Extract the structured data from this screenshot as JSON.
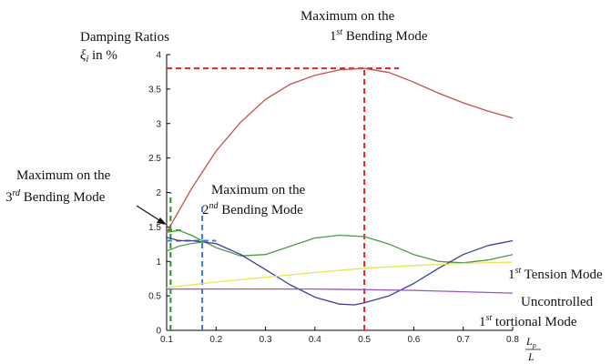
{
  "chart_data": {
    "type": "line",
    "ylabel_line1": "Damping Ratios",
    "ylabel_var": "ξ",
    "ylabel_sub": "i",
    "ylabel_rest": " in %",
    "xlabel_num": "L",
    "xlabel_num_sub": "p",
    "xlabel_den": "L",
    "xlim": [
      0.1,
      0.8
    ],
    "ylim": [
      0,
      4
    ],
    "xticks": [
      "0.1",
      "0.2",
      "0.3",
      "0.4",
      "0.5",
      "0.6",
      "0.7",
      "0.8"
    ],
    "yticks": [
      "0",
      "0.5",
      "1",
      "1.5",
      "2",
      "2.5",
      "3",
      "3.5",
      "4"
    ],
    "grid": false,
    "series": [
      {
        "color": "#c0504d",
        "x": [
          0.1,
          0.15,
          0.2,
          0.25,
          0.3,
          0.35,
          0.4,
          0.45,
          0.5,
          0.55,
          0.6,
          0.65,
          0.7,
          0.75,
          0.8
        ],
        "y": [
          1.42,
          2.05,
          2.6,
          3.02,
          3.35,
          3.57,
          3.7,
          3.78,
          3.8,
          3.74,
          3.6,
          3.44,
          3.3,
          3.18,
          3.08
        ]
      },
      {
        "color": "#4a9a4a",
        "x": [
          0.1,
          0.125,
          0.15,
          0.2,
          0.25,
          0.3,
          0.35,
          0.4,
          0.45,
          0.5,
          0.55,
          0.6,
          0.65,
          0.7,
          0.75,
          0.8
        ],
        "y": [
          1.42,
          1.45,
          1.38,
          1.2,
          1.08,
          1.1,
          1.22,
          1.34,
          1.38,
          1.36,
          1.25,
          1.1,
          1.0,
          0.98,
          1.02,
          1.1
        ]
      },
      {
        "color": "#3c3c9c",
        "x": [
          0.1,
          0.125,
          0.15,
          0.2,
          0.25,
          0.3,
          0.35,
          0.4,
          0.45,
          0.48,
          0.5,
          0.55,
          0.6,
          0.65,
          0.7,
          0.75,
          0.8
        ],
        "y": [
          1.35,
          1.3,
          1.3,
          1.26,
          1.1,
          0.88,
          0.66,
          0.48,
          0.38,
          0.37,
          0.4,
          0.5,
          0.68,
          0.9,
          1.1,
          1.23,
          1.3
        ]
      },
      {
        "color": "#5b9a5b",
        "x": [
          0.1,
          0.125,
          0.15,
          0.175
        ],
        "y": [
          1.15,
          1.22,
          1.26,
          1.28
        ]
      },
      {
        "color": "#e8e84a",
        "x": [
          0.1,
          0.2,
          0.3,
          0.4,
          0.5,
          0.6,
          0.7,
          0.8
        ],
        "y": [
          0.62,
          0.7,
          0.77,
          0.84,
          0.9,
          0.94,
          0.97,
          0.99
        ]
      },
      {
        "color": "#9a55c2",
        "x": [
          0.1,
          0.2,
          0.3,
          0.4,
          0.5,
          0.6,
          0.7,
          0.8
        ],
        "y": [
          0.6,
          0.6,
          0.6,
          0.6,
          0.59,
          0.58,
          0.56,
          0.54
        ]
      }
    ],
    "guides": [
      {
        "color": "#e02020",
        "orient": "v",
        "x": 0.5,
        "y0": 0,
        "y1": 3.82
      },
      {
        "color": "#e02020",
        "orient": "h",
        "y": 3.8,
        "x0": 0.1,
        "x1": 0.57
      },
      {
        "color": "#1e9a1e",
        "orient": "v",
        "x": 0.108,
        "y0": 0,
        "y1": 2.0
      },
      {
        "color": "#1e9a1e",
        "orient": "h",
        "y": 1.45,
        "x0": 0.1,
        "x1": 0.13
      },
      {
        "color": "#3a7ad8",
        "orient": "v",
        "x": 0.172,
        "y0": 0,
        "y1": 1.8
      },
      {
        "color": "#3a7ad8",
        "orient": "h",
        "y": 1.3,
        "x0": 0.1,
        "x1": 0.2
      }
    ],
    "annotations": {
      "max1_line1": "Maximum on the",
      "max1_sup": "st",
      "max1_num": "1",
      "max1_rest": " Bending Mode",
      "max3_line1": "Maximum on the",
      "max3_num": "3",
      "max3_sup": "rd",
      "max3_rest": " Bending Mode",
      "max2_line1": "Maximum on the",
      "max2_num": "2",
      "max2_sup": "nd",
      "max2_rest": " Bending Mode",
      "tension_num": "1",
      "tension_sup": "st",
      "tension_rest": " Tension Mode",
      "unc_line1": "Uncontrolled",
      "unc_num": "1",
      "unc_sup": "st",
      "unc_rest": " tortional Mode"
    }
  }
}
